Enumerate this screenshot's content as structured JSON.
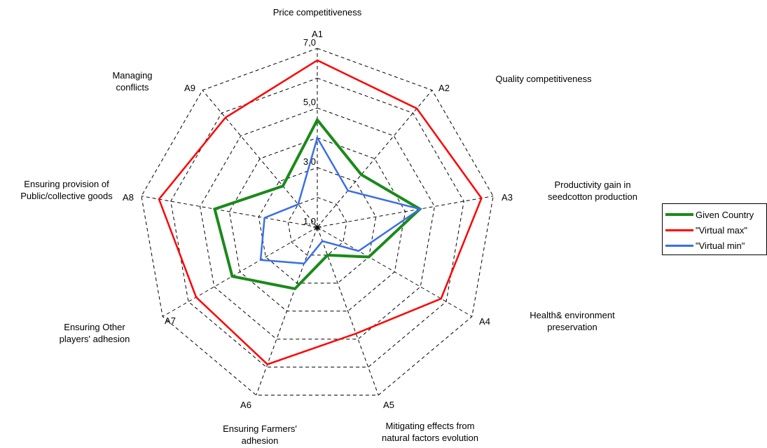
{
  "chart_data": {
    "type": "radar",
    "axes": [
      {
        "id": "A1",
        "label": [
          "Price competitiveness"
        ]
      },
      {
        "id": "A2",
        "label": [
          "Quality competitiveness"
        ]
      },
      {
        "id": "A3",
        "label": [
          "Productivity gain in",
          "seedcotton production"
        ]
      },
      {
        "id": "A4",
        "label": [
          "Health& environment",
          "preservation"
        ]
      },
      {
        "id": "A5",
        "label": [
          "Mitigating effects from",
          "natural factors evolution"
        ]
      },
      {
        "id": "A6",
        "label": [
          "Ensuring Farmers'",
          "adhesion"
        ]
      },
      {
        "id": "A7",
        "label": [
          "Ensuring Other",
          "players' adhesion"
        ]
      },
      {
        "id": "A8",
        "label": [
          "Ensuring provision of",
          "Public/collective goods"
        ]
      },
      {
        "id": "A9",
        "label": [
          "Managing",
          "conflicts"
        ]
      }
    ],
    "rlim": [
      1,
      7
    ],
    "ticks": [
      1,
      3,
      5,
      7
    ],
    "tick_labels": [
      "1,0",
      "3,0",
      "5,0",
      "7,0"
    ],
    "grid": true,
    "legend_position": "right",
    "series": [
      {
        "name": "Given Country",
        "color": "#1a8a1a",
        "values": [
          4.6,
          3.3,
          4.5,
          3.0,
          2.0,
          3.2,
          4.3,
          4.5,
          2.8
        ]
      },
      {
        "name": "\"Virtual max\"",
        "color": "#ff0000",
        "values": [
          6.6,
          6.2,
          6.6,
          5.8,
          4.8,
          5.9,
          5.7,
          6.4,
          5.8
        ]
      },
      {
        "name": "\"Virtual min\"",
        "color": "#3b6fe6",
        "values": [
          4.0,
          2.6,
          4.5,
          2.6,
          1.5,
          2.3,
          3.2,
          2.8,
          2.0
        ]
      }
    ]
  }
}
